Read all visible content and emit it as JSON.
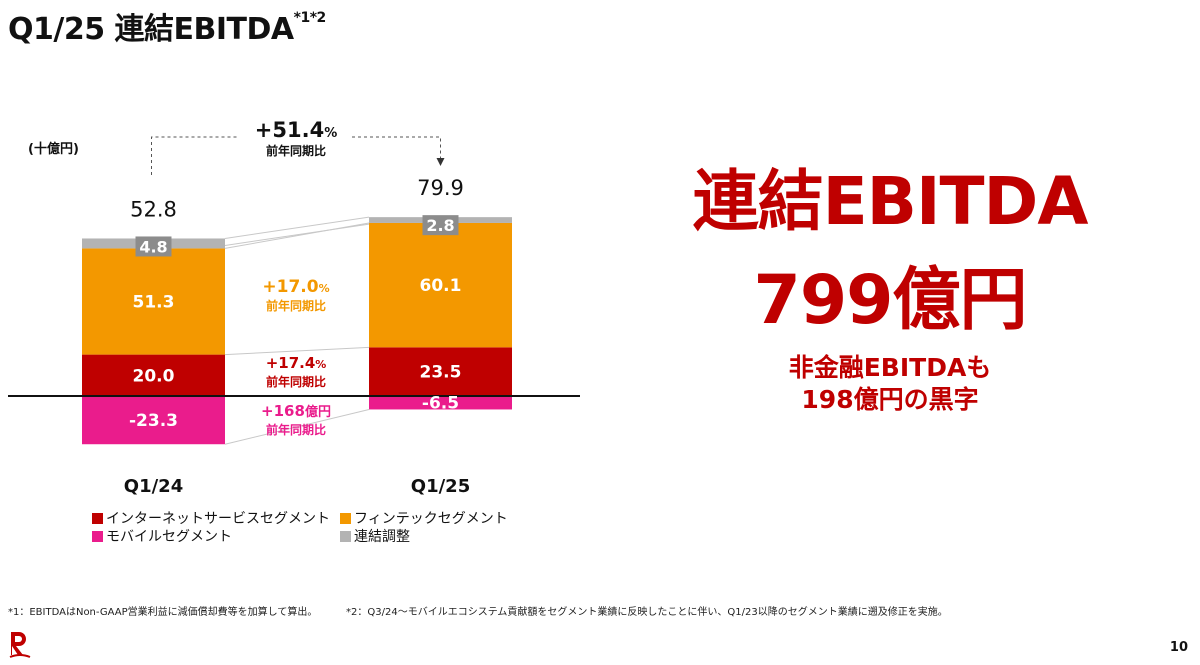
{
  "title": {
    "main": "Q1/25 連結EBITDA",
    "sup": "*1*2"
  },
  "unit_label": "(十億円)",
  "colors": {
    "internet": "#bf0000",
    "fintech": "#f39800",
    "mobile": "#ea1c8c",
    "adjustment": "#b3b3b3",
    "headline": "#bf0000"
  },
  "chart_data": {
    "type": "bar",
    "stacked": true,
    "categories": [
      "Q1/24",
      "Q1/25"
    ],
    "totals": [
      "52.8",
      "79.9"
    ],
    "series": [
      {
        "name": "インターネットサービスセグメント",
        "key": "internet",
        "values": [
          20.0,
          23.5
        ],
        "labels": [
          "20.0",
          "23.5"
        ]
      },
      {
        "name": "フィンテックセグメント",
        "key": "fintech",
        "values": [
          51.3,
          60.1
        ],
        "labels": [
          "51.3",
          "60.1"
        ]
      },
      {
        "name": "連結調整",
        "key": "adjustment",
        "values": [
          4.8,
          2.8
        ],
        "labels": [
          "4.8",
          "2.8"
        ]
      },
      {
        "name": "モバイルセグメント",
        "key": "mobile",
        "values": [
          -23.3,
          -6.5
        ],
        "labels": [
          "-23.3",
          "-6.5"
        ]
      }
    ],
    "annotations": {
      "total_change": {
        "value": "+51.4",
        "unit": "%",
        "caption": "前年同期比"
      },
      "fintech_change": {
        "value": "+17.0",
        "unit": "%",
        "caption": "前年同期比"
      },
      "internet_change": {
        "value": "+17.4",
        "unit": "%",
        "caption": "前年同期比"
      },
      "mobile_change": {
        "value": "+168",
        "unit": "億円",
        "caption": "前年同期比"
      }
    },
    "legend_position": "bottom",
    "grid": false
  },
  "legend": {
    "internet": "インターネットサービスセグメント",
    "fintech": "フィンテックセグメント",
    "mobile": "モバイルセグメント",
    "adjustment": "連結調整"
  },
  "headline": {
    "line1": "連結EBITDA",
    "line2": "799億円",
    "sub1": "非金融EBITDAも",
    "sub2": "198億円の黒字"
  },
  "footnotes": {
    "note1": "*1：EBITDAはNon-GAAP営業利益に減価償却費等を加算して算出。",
    "note2": "*2：Q3/24～モバイルエコシステム貢献額をセグメント業績に反映したことに伴い、Q1/23以降のセグメント業績に遡及修正を実施。"
  },
  "page_number": "10"
}
